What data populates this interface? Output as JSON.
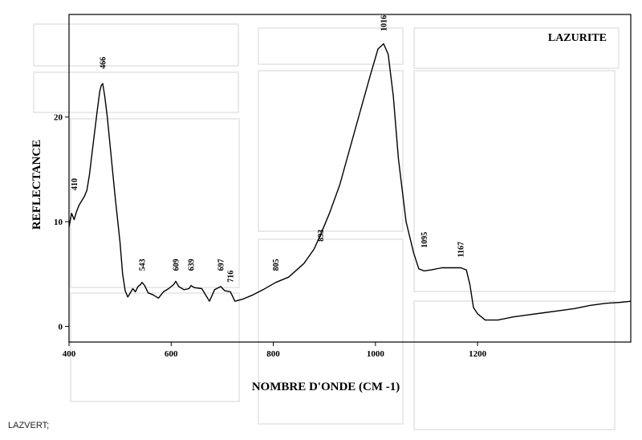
{
  "caption": "LAZVERT;",
  "chart_data": {
    "type": "line",
    "title": "LAZURITE",
    "xlabel": "NOMBRE D'ONDE (CM -1)",
    "ylabel": "REFLECTANCE",
    "xlim": [
      400,
      1500
    ],
    "ylim": [
      -1.5,
      29.8
    ],
    "x_ticks": [
      400,
      600,
      800,
      1000,
      1200
    ],
    "y_ticks": [
      0,
      10,
      20
    ],
    "grid": false,
    "series": [
      {
        "x": [
          400,
          405,
          410,
          415,
          420,
          425,
          430,
          435,
          440,
          445,
          450,
          455,
          460,
          463,
          466,
          470,
          475,
          480,
          490,
          500,
          505,
          510,
          515,
          520,
          525,
          530,
          535,
          540,
          543,
          548,
          555,
          565,
          575,
          585,
          595,
          605,
          609,
          615,
          625,
          635,
          639,
          645,
          660,
          675,
          685,
          697,
          705,
          716,
          725,
          740,
          760,
          780,
          805,
          830,
          860,
          880,
          893,
          910,
          930,
          950,
          970,
          990,
          1005,
          1016,
          1025,
          1035,
          1045,
          1060,
          1075,
          1085,
          1095,
          1110,
          1130,
          1150,
          1167,
          1178,
          1185,
          1192,
          1200,
          1215,
          1240,
          1270,
          1300,
          1330,
          1360,
          1390,
          1420,
          1450,
          1480,
          1500
        ],
        "y": [
          9.5,
          10.8,
          10.2,
          11.0,
          11.6,
          12.0,
          12.4,
          13.0,
          14.5,
          16.5,
          18.5,
          20.5,
          22.4,
          23.0,
          23.2,
          22.0,
          20.0,
          17.5,
          12.5,
          8.0,
          5.0,
          3.4,
          2.8,
          3.2,
          3.6,
          3.3,
          3.8,
          4.0,
          4.2,
          3.9,
          3.2,
          3.0,
          2.7,
          3.3,
          3.6,
          4.0,
          4.3,
          3.8,
          3.5,
          3.6,
          3.9,
          3.7,
          3.6,
          2.4,
          3.5,
          3.8,
          3.4,
          3.3,
          2.4,
          2.6,
          3.0,
          3.5,
          4.2,
          4.7,
          6.0,
          7.4,
          8.8,
          10.8,
          13.5,
          17.0,
          20.5,
          24.0,
          26.5,
          27.0,
          26.0,
          22.0,
          16.0,
          10.0,
          7.0,
          5.5,
          5.3,
          5.4,
          5.6,
          5.6,
          5.6,
          5.4,
          4.0,
          1.8,
          1.2,
          0.6,
          0.6,
          0.9,
          1.1,
          1.3,
          1.5,
          1.7,
          2.0,
          2.2,
          2.3,
          2.4
        ]
      }
    ],
    "annotations": [
      {
        "text": "410",
        "x": 410,
        "y": 13.0
      },
      {
        "text": "466",
        "x": 466,
        "y": 24.6
      },
      {
        "text": "543",
        "x": 543,
        "y": 5.3
      },
      {
        "text": "609",
        "x": 609,
        "y": 5.3
      },
      {
        "text": "639",
        "x": 639,
        "y": 5.3
      },
      {
        "text": "697",
        "x": 697,
        "y": 5.3
      },
      {
        "text": "716",
        "x": 716,
        "y": 4.2
      },
      {
        "text": "805",
        "x": 805,
        "y": 5.3
      },
      {
        "text": "893",
        "x": 893,
        "y": 8.1
      },
      {
        "text": "1016",
        "x": 1016,
        "y": 28.2
      },
      {
        "text": "1095",
        "x": 1095,
        "y": 7.5
      },
      {
        "text": "1167",
        "x": 1167,
        "y": 6.6
      }
    ]
  }
}
